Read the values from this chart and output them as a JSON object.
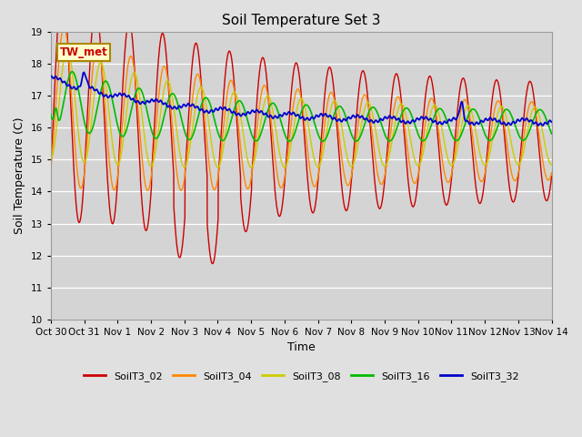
{
  "title": "Soil Temperature Set 3",
  "xlabel": "Time",
  "ylabel": "Soil Temperature (C)",
  "ylim": [
    10.0,
    19.0
  ],
  "yticks": [
    10.0,
    11.0,
    12.0,
    13.0,
    14.0,
    15.0,
    16.0,
    17.0,
    18.0,
    19.0
  ],
  "background_color": "#e0e0e0",
  "plot_bg_color": "#d4d4d4",
  "series_colors": {
    "SoilT3_02": "#cc0000",
    "SoilT3_04": "#ff8800",
    "SoilT3_08": "#cccc00",
    "SoilT3_16": "#00bb00",
    "SoilT3_32": "#0000cc"
  },
  "annotation_label": "TW_met",
  "annotation_bg": "#ffffcc",
  "annotation_border": "#aa8800",
  "annotation_text_color": "#cc0000",
  "xtick_labels": [
    "Oct 30",
    "Oct 31",
    "Nov 1",
    "Nov 2",
    "Nov 3",
    "Nov 4",
    "Nov 5",
    "Nov 6",
    "Nov 7",
    "Nov 8",
    "Nov 9",
    "Nov 10",
    "Nov 11",
    "Nov 12",
    "Nov 13",
    "Nov 14"
  ],
  "linewidth": 1.0
}
